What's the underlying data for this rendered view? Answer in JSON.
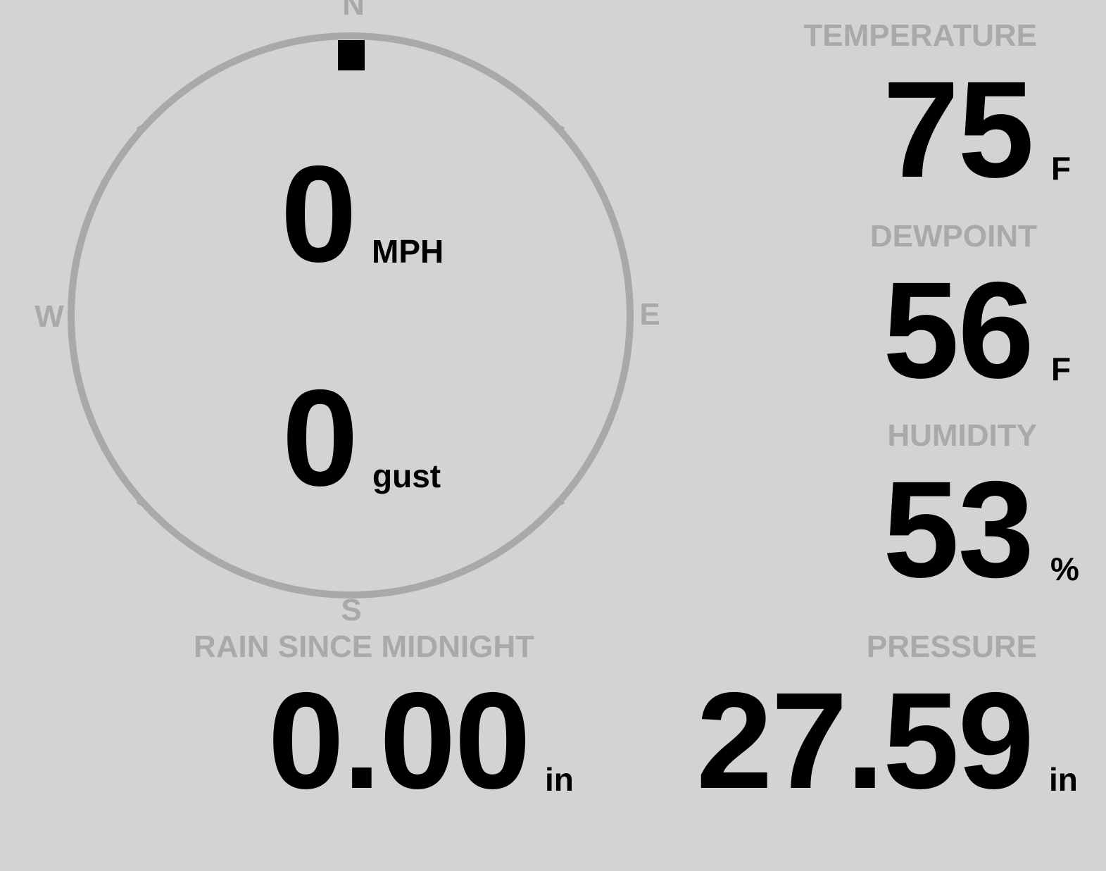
{
  "wind": {
    "speed": "0",
    "speed_unit": "MPH",
    "gust": "0",
    "gust_unit": "gust",
    "direction_degrees": 0,
    "compass": {
      "n": "N",
      "e": "E",
      "s": "S",
      "w": "W"
    }
  },
  "temperature": {
    "label": "TEMPERATURE",
    "value": "75",
    "unit": "F"
  },
  "dewpoint": {
    "label": "DEWPOINT",
    "value": "56",
    "unit": "F"
  },
  "humidity": {
    "label": "HUMIDITY",
    "value": "53",
    "unit": "%"
  },
  "pressure": {
    "label": "PRESSURE",
    "value": "27.59",
    "unit": "in"
  },
  "rain": {
    "label": "RAIN SINCE MIDNIGHT",
    "value": "0.00",
    "unit": "in"
  },
  "colors": {
    "background": "#d3d3d3",
    "label": "#a9a9a9",
    "value": "#000000"
  }
}
